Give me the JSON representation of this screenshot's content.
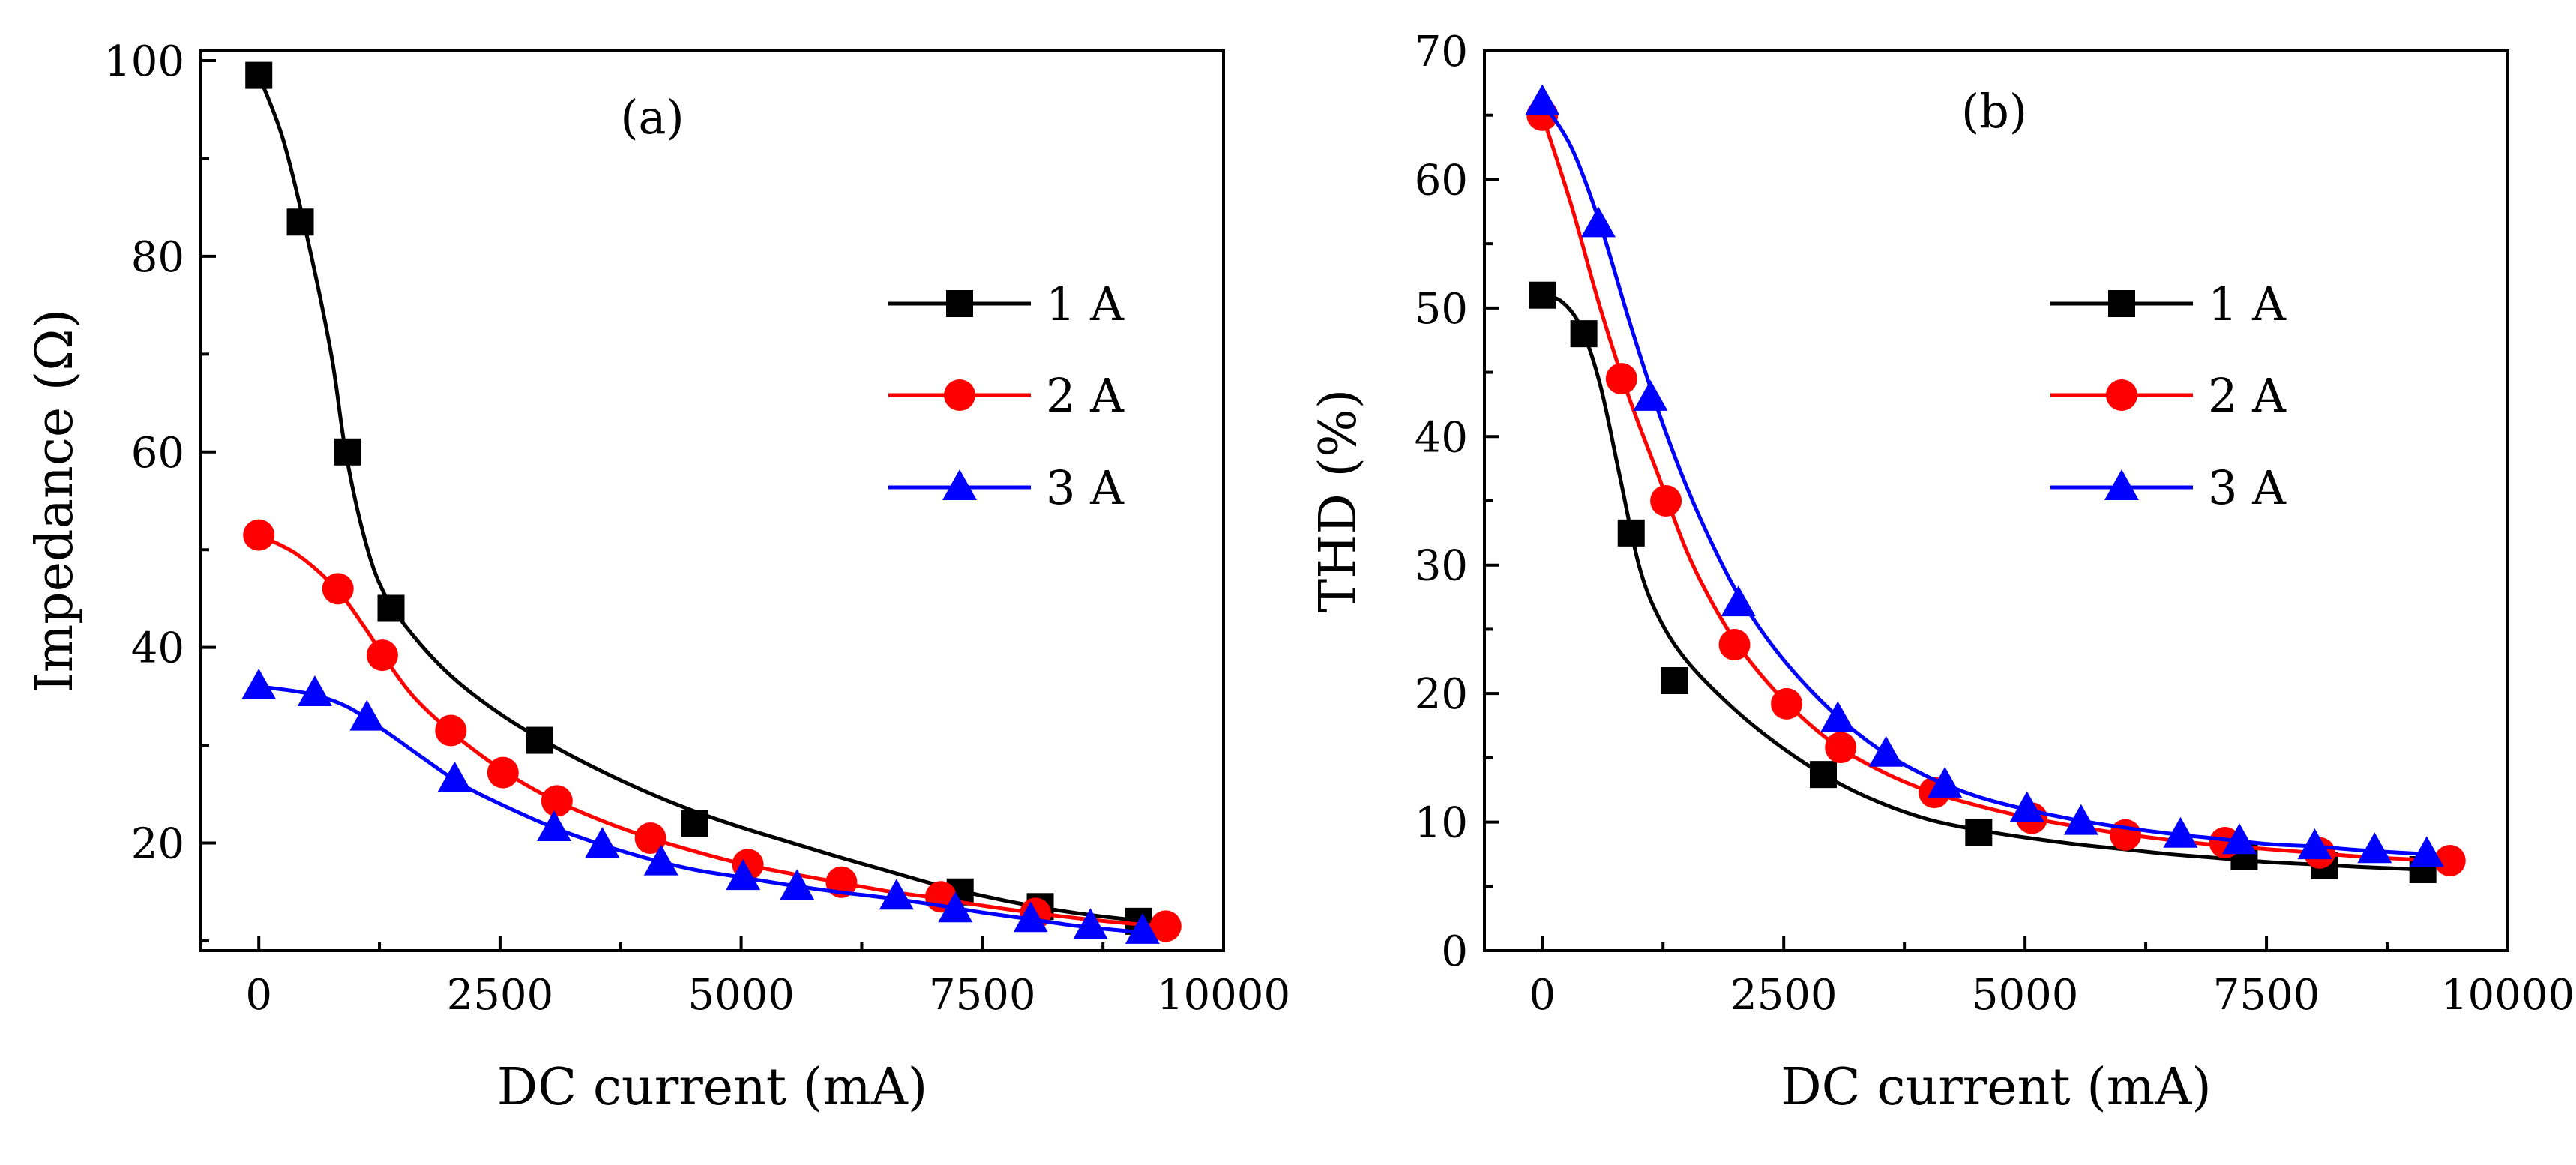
{
  "chart_data": [
    {
      "type": "line",
      "panel_label": "(a)",
      "xlabel": "DC current (mA)",
      "ylabel": "Impedance (Ω)",
      "xlim": [
        -600,
        10000
      ],
      "ylim": [
        9,
        101
      ],
      "x_ticks": [
        0,
        2500,
        5000,
        7500,
        10000
      ],
      "x_tick_labels": [
        "0",
        "2500",
        "5000",
        "7500",
        "10000"
      ],
      "y_ticks": [
        20,
        40,
        60,
        80,
        100
      ],
      "y_tick_labels": [
        "20",
        "40",
        "60",
        "80",
        "100"
      ],
      "grid": false,
      "legend_position": "right-middle",
      "series": [
        {
          "name": "1 A",
          "color": "#000000",
          "marker": "square",
          "points": [
            [
              0,
              98.5
            ],
            [
              430,
              83.5
            ],
            [
              920,
              60
            ],
            [
              1370,
              44
            ],
            [
              2910,
              30.5
            ],
            [
              4520,
              22
            ],
            [
              7270,
              15
            ],
            [
              8100,
              13.5
            ],
            [
              9120,
              12
            ]
          ],
          "curve": [
            [
              0,
              98.5
            ],
            [
              250,
              92
            ],
            [
              500,
              82
            ],
            [
              750,
              70
            ],
            [
              900,
              60
            ],
            [
              1100,
              51
            ],
            [
              1300,
              45.5
            ],
            [
              1600,
              41.2
            ],
            [
              2000,
              37
            ],
            [
              2500,
              33.2
            ],
            [
              3000,
              30.2
            ],
            [
              3500,
              27.6
            ],
            [
              4000,
              25.3
            ],
            [
              4500,
              23.3
            ],
            [
              5000,
              21.6
            ],
            [
              5500,
              20.1
            ],
            [
              6000,
              18.6
            ],
            [
              6500,
              17.2
            ],
            [
              7000,
              15.8
            ],
            [
              7500,
              14.6
            ],
            [
              8000,
              13.6
            ],
            [
              8500,
              12.8
            ],
            [
              9000,
              12.2
            ],
            [
              9300,
              12
            ]
          ]
        },
        {
          "name": "2 A",
          "color": "#ff0000",
          "marker": "circle",
          "points": [
            [
              0,
              51.5
            ],
            [
              820,
              46
            ],
            [
              1280,
              39.2
            ],
            [
              1990,
              31.5
            ],
            [
              2530,
              27.2
            ],
            [
              3090,
              24.3
            ],
            [
              4060,
              20.5
            ],
            [
              5070,
              17.8
            ],
            [
              6040,
              16
            ],
            [
              7070,
              14.5
            ],
            [
              8050,
              12.8
            ],
            [
              9400,
              11.5
            ]
          ],
          "curve": [
            [
              0,
              51.5
            ],
            [
              400,
              49.5
            ],
            [
              800,
              46
            ],
            [
              1100,
              42
            ],
            [
              1300,
              39
            ],
            [
              1600,
              35
            ],
            [
              2000,
              31.3
            ],
            [
              2500,
              27.6
            ],
            [
              3000,
              24.7
            ],
            [
              3500,
              22.5
            ],
            [
              4000,
              20.7
            ],
            [
              4500,
              19.2
            ],
            [
              5000,
              17.9
            ],
            [
              5500,
              16.9
            ],
            [
              6000,
              16
            ],
            [
              6500,
              15.1
            ],
            [
              7000,
              14.4
            ],
            [
              7500,
              13.6
            ],
            [
              8000,
              12.9
            ],
            [
              8500,
              12.3
            ],
            [
              9000,
              11.8
            ],
            [
              9400,
              11.5
            ]
          ]
        },
        {
          "name": "3 A",
          "color": "#0000ff",
          "marker": "triangle",
          "points": [
            [
              0,
              36
            ],
            [
              580,
              35.3
            ],
            [
              1120,
              32.8
            ],
            [
              2030,
              26.5
            ],
            [
              3060,
              21.5
            ],
            [
              3560,
              19.8
            ],
            [
              4170,
              18
            ],
            [
              5020,
              16.5
            ],
            [
              5580,
              15.5
            ],
            [
              6610,
              14.5
            ],
            [
              7220,
              13.2
            ],
            [
              8000,
              12.2
            ],
            [
              8620,
              11.5
            ],
            [
              9160,
              11
            ]
          ],
          "curve": [
            [
              0,
              36
            ],
            [
              500,
              35.3
            ],
            [
              900,
              34
            ],
            [
              1300,
              31.5
            ],
            [
              1700,
              28.7
            ],
            [
              2100,
              26
            ],
            [
              2500,
              24
            ],
            [
              3000,
              21.8
            ],
            [
              3500,
              20
            ],
            [
              4000,
              18.5
            ],
            [
              4500,
              17.3
            ],
            [
              5000,
              16.5
            ],
            [
              5500,
              15.7
            ],
            [
              6000,
              15
            ],
            [
              6500,
              14.4
            ],
            [
              7000,
              13.7
            ],
            [
              7500,
              12.9
            ],
            [
              8000,
              12.2
            ],
            [
              8500,
              11.5
            ],
            [
              9000,
              11
            ],
            [
              9200,
              10.8
            ]
          ]
        }
      ]
    },
    {
      "type": "line",
      "panel_label": "(b)",
      "xlabel": "DC current (mA)",
      "ylabel": "THD (%)",
      "xlim": [
        -600,
        10000
      ],
      "ylim": [
        0,
        70
      ],
      "x_ticks": [
        0,
        2500,
        5000,
        7500,
        10000
      ],
      "x_tick_labels": [
        "0",
        "2500",
        "5000",
        "7500",
        "10000"
      ],
      "y_ticks": [
        0,
        10,
        20,
        30,
        40,
        50,
        60,
        70
      ],
      "y_tick_labels": [
        "0",
        "10",
        "20",
        "30",
        "40",
        "50",
        "60",
        "70"
      ],
      "grid": false,
      "legend_position": "right-middle",
      "series": [
        {
          "name": "1 A",
          "color": "#000000",
          "marker": "square",
          "points": [
            [
              0,
              51
            ],
            [
              430,
              48
            ],
            [
              920,
              32.5
            ],
            [
              1370,
              21
            ],
            [
              2910,
              13.7
            ],
            [
              4520,
              9.2
            ],
            [
              7270,
              7.3
            ],
            [
              8100,
              6.6
            ],
            [
              9120,
              6.3
            ]
          ],
          "curve": [
            [
              0,
              51
            ],
            [
              200,
              50.5
            ],
            [
              400,
              48.5
            ],
            [
              600,
              44
            ],
            [
              800,
              37
            ],
            [
              1000,
              30
            ],
            [
              1200,
              26
            ],
            [
              1500,
              22.5
            ],
            [
              2000,
              18.7
            ],
            [
              2500,
              15.7
            ],
            [
              3000,
              13.3
            ],
            [
              3500,
              11.5
            ],
            [
              4000,
              10.2
            ],
            [
              4500,
              9.4
            ],
            [
              5000,
              8.8
            ],
            [
              5500,
              8.3
            ],
            [
              6000,
              7.9
            ],
            [
              6500,
              7.5
            ],
            [
              7000,
              7.2
            ],
            [
              7500,
              6.9
            ],
            [
              8000,
              6.7
            ],
            [
              8500,
              6.5
            ],
            [
              9120,
              6.3
            ]
          ]
        },
        {
          "name": "2 A",
          "color": "#ff0000",
          "marker": "circle",
          "points": [
            [
              0,
              65
            ],
            [
              820,
              44.5
            ],
            [
              1280,
              35
            ],
            [
              1990,
              23.8
            ],
            [
              2530,
              19.2
            ],
            [
              3090,
              15.8
            ],
            [
              4060,
              12.3
            ],
            [
              5070,
              10.3
            ],
            [
              6040,
              9
            ],
            [
              7070,
              8.4
            ],
            [
              8050,
              7.6
            ],
            [
              9400,
              7
            ]
          ],
          "curve": [
            [
              0,
              65
            ],
            [
              300,
              58
            ],
            [
              600,
              50
            ],
            [
              900,
              43
            ],
            [
              1200,
              37
            ],
            [
              1500,
              31
            ],
            [
              1800,
              26.5
            ],
            [
              2100,
              23
            ],
            [
              2500,
              19.5
            ],
            [
              3000,
              16.2
            ],
            [
              3500,
              14
            ],
            [
              4000,
              12.4
            ],
            [
              4500,
              11.3
            ],
            [
              5000,
              10.4
            ],
            [
              5500,
              9.7
            ],
            [
              6000,
              9.1
            ],
            [
              6500,
              8.6
            ],
            [
              7000,
              8.2
            ],
            [
              7500,
              7.9
            ],
            [
              8000,
              7.6
            ],
            [
              8500,
              7.3
            ],
            [
              9000,
              7.1
            ],
            [
              9400,
              7
            ]
          ]
        },
        {
          "name": "3 A",
          "color": "#0000ff",
          "marker": "triangle",
          "points": [
            [
              0,
              66
            ],
            [
              580,
              56.5
            ],
            [
              1120,
              43
            ],
            [
              2030,
              27
            ],
            [
              3060,
              18
            ],
            [
              3560,
              15.3
            ],
            [
              4170,
              12.9
            ],
            [
              5020,
              11
            ],
            [
              5580,
              10
            ],
            [
              6610,
              9
            ],
            [
              7220,
              8.5
            ],
            [
              8000,
              8.1
            ],
            [
              8620,
              7.8
            ],
            [
              9160,
              7.5
            ]
          ],
          "curve": [
            [
              0,
              66
            ],
            [
              300,
              62.5
            ],
            [
              600,
              56.5
            ],
            [
              900,
              49
            ],
            [
              1200,
              42
            ],
            [
              1500,
              36
            ],
            [
              1800,
              31
            ],
            [
              2100,
              26.8
            ],
            [
              2500,
              22.6
            ],
            [
              3000,
              18.6
            ],
            [
              3500,
              15.6
            ],
            [
              4000,
              13.5
            ],
            [
              4500,
              12
            ],
            [
              5000,
              11
            ],
            [
              5500,
              10.2
            ],
            [
              6000,
              9.6
            ],
            [
              6500,
              9.1
            ],
            [
              7000,
              8.7
            ],
            [
              7500,
              8.3
            ],
            [
              8000,
              8.1
            ],
            [
              8500,
              7.8
            ],
            [
              9160,
              7.5
            ]
          ]
        }
      ]
    }
  ]
}
